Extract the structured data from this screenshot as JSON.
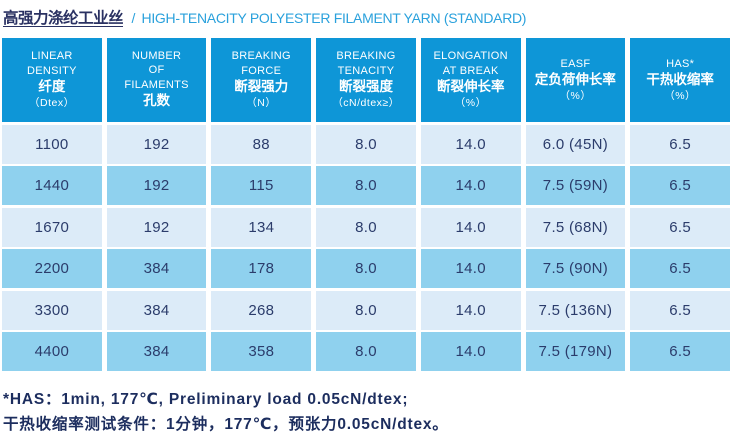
{
  "title": {
    "zh": "高强力涤纶工业丝",
    "sep": "/",
    "en": "HIGH-TENACITY POLYESTER FILAMENT YARN (STANDARD)"
  },
  "colors": {
    "header_bg": "#0e96d7",
    "row_light": "#dcebf8",
    "row_medium": "#8fd1ee",
    "cell_navy": "#2b3c6b",
    "title_navy": "#2a3162",
    "title_blue": "#2aa1dc",
    "note_navy": "#1c2d5e"
  },
  "table": {
    "columns": [
      {
        "en": "LINEAR\nDENSITY",
        "zh": "纤度",
        "unit": "（Dtex）"
      },
      {
        "en": "NUMBER\nOF\nFILAMENTS",
        "zh": "孔数",
        "unit": ""
      },
      {
        "en": "BREAKING\nFORCE",
        "zh": "断裂强力",
        "unit": "（N）"
      },
      {
        "en": "BREAKING\nTENACITY",
        "zh": "断裂强度",
        "unit": "（cN/dtex≥）"
      },
      {
        "en": "ELONGATION\nAT BREAK",
        "zh": "断裂伸长率",
        "unit": "（%）"
      },
      {
        "en": "EASF",
        "zh": "定负荷伸长率",
        "unit": "（%）"
      },
      {
        "en": "HAS*",
        "zh": "干热收缩率",
        "unit": "（%）"
      }
    ],
    "rows": [
      [
        "1100",
        "192",
        "88",
        "8.0",
        "14.0",
        "6.0 (45N)",
        "6.5"
      ],
      [
        "1440",
        "192",
        "115",
        "8.0",
        "14.0",
        "7.5 (59N)",
        "6.5"
      ],
      [
        "1670",
        "192",
        "134",
        "8.0",
        "14.0",
        "7.5 (68N)",
        "6.5"
      ],
      [
        "2200",
        "384",
        "178",
        "8.0",
        "14.0",
        "7.5 (90N)",
        "6.5"
      ],
      [
        "3300",
        "384",
        "268",
        "8.0",
        "14.0",
        "7.5 (136N)",
        "6.5"
      ],
      [
        "4400",
        "384",
        "358",
        "8.0",
        "14.0",
        "7.5 (179N)",
        "6.5"
      ]
    ]
  },
  "notes": {
    "line1": "*HAS：1min, 177℃, Preliminary load 0.05cN/dtex;",
    "line2": "干热收缩率测试条件：1分钟，177℃，预张力0.05cN/dtex。"
  }
}
